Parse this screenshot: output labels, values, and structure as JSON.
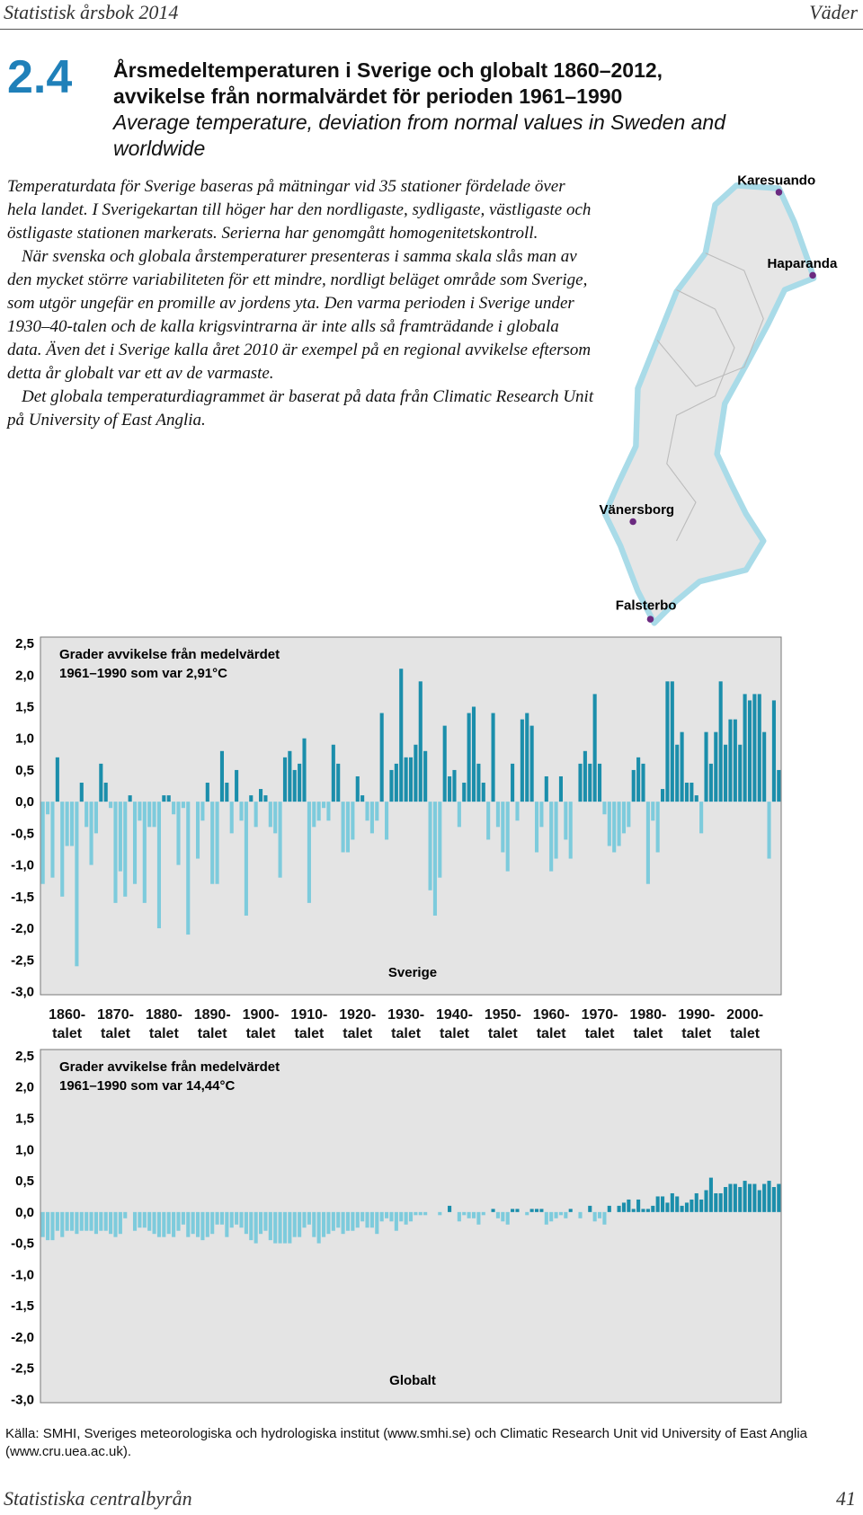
{
  "header": {
    "left": "Statistisk årsbok 2014",
    "right": "Väder"
  },
  "section_number": "2.4",
  "title": {
    "sv_line1": "Årsmedeltemperaturen i Sverige och globalt 1860–2012,",
    "sv_line2": "avvikelse från normalvärdet för perioden 1961–1990",
    "en": "Average temperature, deviation from normal values in Sweden and worldwide"
  },
  "text": [
    "Temperaturdata för Sverige baseras på mätningar vid 35 stationer fördelade över hela landet. I Sverigekartan till höger har den nordligaste, sydligaste, västligaste och östligaste stationen markerats. Serierna har genomgått homogenitetskontroll.",
    "När svenska och globala årstemperaturer presenteras i samma skala slås man av den mycket större variabiliteten för ett mindre, nordligt beläget område som Sverige, som utgör ungefär en promille av jordens yta. Den varma perioden i Sverige under 1930–40-talen och de kalla krigsvintrarna är inte alls så framträdande i globala data. Även det i Sverige kalla året 2010 är exempel på en regional avvikelse eftersom detta år globalt var ett av de varmaste.",
    "Det globala temperaturdiagrammet är baserat på data från Climatic Research Unit på University of East Anglia."
  ],
  "map": {
    "stations": [
      "Karesuando",
      "Haparanda",
      "Vänersborg",
      "Falsterbo"
    ]
  },
  "chart_data": [
    {
      "type": "bar",
      "annotation": [
        "Grader avvikelse från medelvärdet",
        "1961–1990 som var 2,91°C"
      ],
      "label": "Sverige",
      "color_positive": "#1b8eab",
      "color_negative": "#7dcbdc",
      "x": [
        1860,
        1861,
        1862,
        1863,
        1864,
        1865,
        1866,
        1867,
        1868,
        1869,
        1870,
        1871,
        1872,
        1873,
        1874,
        1875,
        1876,
        1877,
        1878,
        1879,
        1880,
        1881,
        1882,
        1883,
        1884,
        1885,
        1886,
        1887,
        1888,
        1889,
        1890,
        1891,
        1892,
        1893,
        1894,
        1895,
        1896,
        1897,
        1898,
        1899,
        1900,
        1901,
        1902,
        1903,
        1904,
        1905,
        1906,
        1907,
        1908,
        1909,
        1910,
        1911,
        1912,
        1913,
        1914,
        1915,
        1916,
        1917,
        1918,
        1919,
        1920,
        1921,
        1922,
        1923,
        1924,
        1925,
        1926,
        1927,
        1928,
        1929,
        1930,
        1931,
        1932,
        1933,
        1934,
        1935,
        1936,
        1937,
        1938,
        1939,
        1940,
        1941,
        1942,
        1943,
        1944,
        1945,
        1946,
        1947,
        1948,
        1949,
        1950,
        1951,
        1952,
        1953,
        1954,
        1955,
        1956,
        1957,
        1958,
        1959,
        1960,
        1961,
        1962,
        1963,
        1964,
        1965,
        1966,
        1967,
        1968,
        1969,
        1970,
        1971,
        1972,
        1973,
        1974,
        1975,
        1976,
        1977,
        1978,
        1979,
        1980,
        1981,
        1982,
        1983,
        1984,
        1985,
        1986,
        1987,
        1988,
        1989,
        1990,
        1991,
        1992,
        1993,
        1994,
        1995,
        1996,
        1997,
        1998,
        1999,
        2000,
        2001,
        2002,
        2003,
        2004,
        2005,
        2006,
        2007,
        2008,
        2009,
        2010,
        2011,
        2012
      ],
      "values": [
        -1.3,
        -0.2,
        -1.2,
        0.7,
        -1.5,
        -0.7,
        -0.7,
        -2.6,
        0.3,
        -0.4,
        -1.0,
        -0.5,
        0.6,
        0.3,
        -0.1,
        -1.6,
        -1.1,
        -1.5,
        0.1,
        -1.3,
        -0.3,
        -1.6,
        -0.4,
        -0.4,
        -2.0,
        0.1,
        0.1,
        -0.2,
        -1.0,
        -0.1,
        -2.1,
        0.0,
        -0.9,
        -0.3,
        0.3,
        -1.3,
        -1.3,
        0.8,
        0.3,
        -0.5,
        0.5,
        -0.3,
        -1.8,
        0.1,
        -0.4,
        0.2,
        0.1,
        -0.4,
        -0.5,
        -1.2,
        0.7,
        0.8,
        0.5,
        0.6,
        1.0,
        -1.6,
        -0.4,
        -0.3,
        -0.1,
        -0.3,
        0.9,
        0.6,
        -0.8,
        -0.8,
        -0.6,
        0.4,
        0.1,
        -0.3,
        -0.5,
        -0.3,
        1.4,
        -0.6,
        0.5,
        0.6,
        2.1,
        0.7,
        0.7,
        0.9,
        1.9,
        0.8,
        -1.4,
        -1.8,
        -1.2,
        1.2,
        0.4,
        0.5,
        -0.4,
        0.3,
        1.4,
        1.5,
        0.6,
        0.3,
        -0.6,
        1.4,
        -0.4,
        -0.8,
        -1.1,
        0.6,
        -0.3,
        1.3,
        1.4,
        1.2,
        -0.8,
        -0.4,
        0.4,
        -1.1,
        -0.9,
        0.4,
        -0.6,
        -0.9,
        0.0,
        0.6,
        0.8,
        0.6,
        1.7,
        0.6,
        -0.2,
        -0.7,
        -0.8,
        -0.7,
        -0.5,
        -0.4,
        0.5,
        0.7,
        0.6,
        -1.3,
        -0.3,
        -0.8,
        0.2,
        1.9,
        1.9,
        0.9,
        1.1,
        0.3,
        0.3,
        0.1,
        -0.5,
        1.1,
        0.6,
        1.1,
        1.9,
        0.9,
        1.3,
        1.3,
        0.9,
        1.7,
        1.6,
        1.7,
        1.7,
        1.1,
        -0.9,
        1.6,
        0.5
      ],
      "xlim": [
        1859.5,
        2012.5
      ],
      "ylim": [
        -3.05,
        2.6
      ],
      "xticks": [
        {
          "value": 1865,
          "label": "1860-talet"
        },
        {
          "value": 1875,
          "label": "1870-talet"
        },
        {
          "value": 1885,
          "label": "1880-talet"
        },
        {
          "value": 1895,
          "label": "1890-talet"
        },
        {
          "value": 1905,
          "label": "1900-talet"
        },
        {
          "value": 1915,
          "label": "1910-talet"
        },
        {
          "value": 1925,
          "label": "1920-talet"
        },
        {
          "value": 1935,
          "label": "1930-talet"
        },
        {
          "value": 1945,
          "label": "1940-talet"
        },
        {
          "value": 1955,
          "label": "1950-talet"
        },
        {
          "value": 1965,
          "label": "1960-talet"
        },
        {
          "value": 1975,
          "label": "1970-talet"
        },
        {
          "value": 1985,
          "label": "1980-talet"
        },
        {
          "value": 1995,
          "label": "1990-talet"
        },
        {
          "value": 2005,
          "label": "2000-talet"
        }
      ],
      "yticks": [
        {
          "value": 2.5,
          "label": "2,5"
        },
        {
          "value": 2.0,
          "label": "2,0"
        },
        {
          "value": 1.5,
          "label": "1,5"
        },
        {
          "value": 1.0,
          "label": "1,0"
        },
        {
          "value": 0.5,
          "label": "0,5"
        },
        {
          "value": 0,
          "label": "0,0"
        },
        {
          "value": -0.5,
          "label": "-0,5"
        },
        {
          "value": -1.0,
          "label": "-1,0"
        },
        {
          "value": -1.5,
          "label": "-1,5"
        },
        {
          "value": -2.0,
          "label": "-2,0"
        },
        {
          "value": -2.5,
          "label": "-2,5"
        },
        {
          "value": -3.0,
          "label": "-3,0"
        }
      ]
    },
    {
      "type": "bar",
      "annotation": [
        "Grader avvikelse från medelvärdet",
        "1961–1990 som var 14,44°C"
      ],
      "label": "Globalt",
      "color_positive": "#1b8eab",
      "color_negative": "#7dcbdc",
      "x": [
        1860,
        1861,
        1862,
        1863,
        1864,
        1865,
        1866,
        1867,
        1868,
        1869,
        1870,
        1871,
        1872,
        1873,
        1874,
        1875,
        1876,
        1877,
        1878,
        1879,
        1880,
        1881,
        1882,
        1883,
        1884,
        1885,
        1886,
        1887,
        1888,
        1889,
        1890,
        1891,
        1892,
        1893,
        1894,
        1895,
        1896,
        1897,
        1898,
        1899,
        1900,
        1901,
        1902,
        1903,
        1904,
        1905,
        1906,
        1907,
        1908,
        1909,
        1910,
        1911,
        1912,
        1913,
        1914,
        1915,
        1916,
        1917,
        1918,
        1919,
        1920,
        1921,
        1922,
        1923,
        1924,
        1925,
        1926,
        1927,
        1928,
        1929,
        1930,
        1931,
        1932,
        1933,
        1934,
        1935,
        1936,
        1937,
        1938,
        1939,
        1940,
        1941,
        1942,
        1943,
        1944,
        1945,
        1946,
        1947,
        1948,
        1949,
        1950,
        1951,
        1952,
        1953,
        1954,
        1955,
        1956,
        1957,
        1958,
        1959,
        1960,
        1961,
        1962,
        1963,
        1964,
        1965,
        1966,
        1967,
        1968,
        1969,
        1970,
        1971,
        1972,
        1973,
        1974,
        1975,
        1976,
        1977,
        1978,
        1979,
        1980,
        1981,
        1982,
        1983,
        1984,
        1985,
        1986,
        1987,
        1988,
        1989,
        1990,
        1991,
        1992,
        1993,
        1994,
        1995,
        1996,
        1997,
        1998,
        1999,
        2000,
        2001,
        2002,
        2003,
        2004,
        2005,
        2006,
        2007,
        2008,
        2009,
        2010,
        2011,
        2012
      ],
      "values": [
        -0.4,
        -0.45,
        -0.45,
        -0.3,
        -0.4,
        -0.3,
        -0.3,
        -0.35,
        -0.3,
        -0.3,
        -0.3,
        -0.35,
        -0.3,
        -0.3,
        -0.35,
        -0.4,
        -0.35,
        -0.1,
        0.0,
        -0.3,
        -0.25,
        -0.25,
        -0.3,
        -0.35,
        -0.4,
        -0.4,
        -0.35,
        -0.4,
        -0.3,
        -0.2,
        -0.4,
        -0.35,
        -0.4,
        -0.45,
        -0.4,
        -0.35,
        -0.2,
        -0.2,
        -0.4,
        -0.25,
        -0.2,
        -0.25,
        -0.35,
        -0.45,
        -0.5,
        -0.35,
        -0.3,
        -0.45,
        -0.5,
        -0.5,
        -0.5,
        -0.5,
        -0.4,
        -0.4,
        -0.25,
        -0.2,
        -0.4,
        -0.5,
        -0.4,
        -0.35,
        -0.3,
        -0.25,
        -0.35,
        -0.3,
        -0.3,
        -0.25,
        -0.15,
        -0.25,
        -0.25,
        -0.35,
        -0.15,
        -0.1,
        -0.15,
        -0.3,
        -0.15,
        -0.2,
        -0.15,
        -0.05,
        -0.05,
        -0.05,
        0.0,
        0.0,
        -0.05,
        0.0,
        0.1,
        0.0,
        -0.15,
        -0.05,
        -0.1,
        -0.1,
        -0.2,
        -0.05,
        0.0,
        0.05,
        -0.1,
        -0.15,
        -0.2,
        0.05,
        0.05,
        0.0,
        -0.05,
        0.05,
        0.05,
        0.05,
        -0.2,
        -0.15,
        -0.1,
        -0.05,
        -0.1,
        0.05,
        0.0,
        -0.1,
        0.0,
        0.1,
        -0.15,
        -0.1,
        -0.2,
        0.1,
        0.0,
        0.1,
        0.15,
        0.2,
        0.05,
        0.2,
        0.05,
        0.05,
        0.1,
        0.25,
        0.25,
        0.15,
        0.3,
        0.25,
        0.1,
        0.15,
        0.2,
        0.3,
        0.2,
        0.35,
        0.55,
        0.3,
        0.3,
        0.4,
        0.45,
        0.45,
        0.4,
        0.5,
        0.45,
        0.45,
        0.35,
        0.45,
        0.5,
        0.4,
        0.45
      ],
      "xlim": [
        1859.5,
        2012.5
      ],
      "ylim": [
        -3.05,
        2.6
      ],
      "yticks": [
        {
          "value": 2.5,
          "label": "2,5"
        },
        {
          "value": 2.0,
          "label": "2,0"
        },
        {
          "value": 1.5,
          "label": "1,5"
        },
        {
          "value": 1.0,
          "label": "1,0"
        },
        {
          "value": 0.5,
          "label": "0,5"
        },
        {
          "value": 0,
          "label": "0,0"
        },
        {
          "value": -0.5,
          "label": "-0,5"
        },
        {
          "value": -1.0,
          "label": "-1,0"
        },
        {
          "value": -1.5,
          "label": "-1,5"
        },
        {
          "value": -2.0,
          "label": "-2,0"
        },
        {
          "value": -2.5,
          "label": "-2,5"
        },
        {
          "value": -3.0,
          "label": "-3,0"
        }
      ]
    }
  ],
  "source": "Källa: SMHI, Sveriges meteorologiska och hydrologiska institut (www.smhi.se) och Climatic Research Unit vid University of East Anglia (www.cru.uea.ac.uk).",
  "footer": {
    "left": "Statistiska centralbyrån",
    "right": "41"
  }
}
